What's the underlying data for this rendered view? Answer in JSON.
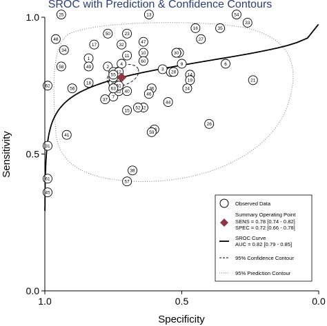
{
  "chart_data": {
    "type": "scatter",
    "title": "SROC with Prediction & Confidence Contours",
    "xlabel": "Specificity",
    "ylabel": "Sensitivity",
    "x_reversed": true,
    "xlim": [
      1.0,
      0.0
    ],
    "ylim": [
      0.0,
      1.0
    ],
    "xticks": [
      "1.0",
      "0.5",
      "0.0"
    ],
    "yticks": [
      "0.0",
      "0.5",
      "1.0"
    ],
    "grid": false,
    "legend_position": "bottom-right",
    "studies": [
      {
        "id": "1",
        "spec": 0.84,
        "sens": 0.85
      },
      {
        "id": "2",
        "spec": 0.77,
        "sens": 0.82
      },
      {
        "id": "3",
        "spec": 0.57,
        "sens": 0.81
      },
      {
        "id": "4",
        "spec": 0.72,
        "sens": 0.83
      },
      {
        "id": "5",
        "spec": 0.75,
        "sens": 0.8
      },
      {
        "id": "6",
        "spec": 0.34,
        "sens": 0.83
      },
      {
        "id": "7",
        "spec": 0.75,
        "sens": 0.71
      },
      {
        "id": "8",
        "spec": 0.54,
        "sens": 0.8
      },
      {
        "id": "9",
        "spec": 0.5,
        "sens": 0.83
      },
      {
        "id": "10",
        "spec": 0.64,
        "sens": 0.87
      },
      {
        "id": "11",
        "spec": 0.7,
        "sens": 0.86
      },
      {
        "id": "12",
        "spec": 0.73,
        "sens": 0.8
      },
      {
        "id": "13",
        "spec": 0.62,
        "sens": 1.01
      },
      {
        "id": "14",
        "spec": 0.47,
        "sens": 0.79
      },
      {
        "id": "15",
        "spec": 0.7,
        "sens": 0.66
      },
      {
        "id": "16",
        "spec": 0.45,
        "sens": 0.96
      },
      {
        "id": "17",
        "spec": 0.82,
        "sens": 0.9
      },
      {
        "id": "18",
        "spec": 0.84,
        "sens": 0.76
      },
      {
        "id": "19",
        "spec": 0.47,
        "sens": 0.77
      },
      {
        "id": "20",
        "spec": 0.51,
        "sens": 0.87
      },
      {
        "id": "21",
        "spec": 0.24,
        "sens": 0.77
      },
      {
        "id": "22",
        "spec": 0.73,
        "sens": 0.73
      },
      {
        "id": "23",
        "spec": 0.7,
        "sens": 0.94
      },
      {
        "id": "24",
        "spec": 0.48,
        "sens": 0.74
      },
      {
        "id": "25",
        "spec": 0.94,
        "sens": 1.01
      },
      {
        "id": "26",
        "spec": 0.4,
        "sens": 0.61
      },
      {
        "id": "27",
        "spec": 0.43,
        "sens": 0.92
      },
      {
        "id": "28",
        "spec": 0.53,
        "sens": 0.8
      },
      {
        "id": "29",
        "spec": 0.52,
        "sens": 0.87
      },
      {
        "id": "30",
        "spec": 0.52,
        "sens": 0.87
      },
      {
        "id": "31",
        "spec": 0.99,
        "sens": 0.53
      },
      {
        "id": "32",
        "spec": 0.72,
        "sens": 0.9
      },
      {
        "id": "33",
        "spec": 0.26,
        "sens": 0.98
      },
      {
        "id": "34",
        "spec": 0.93,
        "sens": 0.88
      },
      {
        "id": "35",
        "spec": 0.36,
        "sens": 0.96
      },
      {
        "id": "36",
        "spec": 0.61,
        "sens": 0.74
      },
      {
        "id": "37",
        "spec": 0.78,
        "sens": 0.7
      },
      {
        "id": "38",
        "spec": 0.68,
        "sens": 0.44
      },
      {
        "id": "39",
        "spec": 0.75,
        "sens": 0.76
      },
      {
        "id": "40",
        "spec": 0.7,
        "sens": 0.73
      },
      {
        "id": "41",
        "spec": 0.92,
        "sens": 0.57
      },
      {
        "id": "42",
        "spec": 0.64,
        "sens": 0.67
      },
      {
        "id": "43",
        "spec": 0.6,
        "sens": 0.59
      },
      {
        "id": "44",
        "spec": 0.55,
        "sens": 0.69
      },
      {
        "id": "45",
        "spec": 0.99,
        "sens": 0.36
      },
      {
        "id": "46",
        "spec": 0.62,
        "sens": 0.72
      },
      {
        "id": "47",
        "spec": 0.64,
        "sens": 0.91
      },
      {
        "id": "48",
        "spec": 0.96,
        "sens": 0.92
      },
      {
        "id": "49",
        "spec": 0.84,
        "sens": 0.82
      },
      {
        "id": "50",
        "spec": 0.77,
        "sens": 0.94
      },
      {
        "id": "51",
        "spec": 0.73,
        "sens": 0.75
      },
      {
        "id": "52",
        "spec": 0.66,
        "sens": 0.67
      },
      {
        "id": "53",
        "spec": 0.75,
        "sens": 0.78
      },
      {
        "id": "54",
        "spec": 0.3,
        "sens": 1.01
      },
      {
        "id": "55",
        "spec": 0.75,
        "sens": 0.79
      },
      {
        "id": "56",
        "spec": 0.9,
        "sens": 0.74
      },
      {
        "id": "57",
        "spec": 0.7,
        "sens": 0.4
      },
      {
        "id": "58",
        "spec": 0.94,
        "sens": 0.82
      },
      {
        "id": "59",
        "spec": 0.61,
        "sens": 0.58
      },
      {
        "id": "60",
        "spec": 0.64,
        "sens": 0.84
      },
      {
        "id": "61",
        "spec": 0.99,
        "sens": 0.41
      },
      {
        "id": "62",
        "spec": 0.99,
        "sens": 0.75
      },
      {
        "id": "63",
        "spec": 0.75,
        "sens": 0.74
      }
    ],
    "summary_point": {
      "spec": 0.72,
      "sens": 0.78
    },
    "sroc_auc": 0.82,
    "legend": {
      "observed": "Observed Data",
      "summary_title": "Summary Operating Point",
      "summary_sens": "SENS = 0.78 [0.74 - 0.82]",
      "summary_spec": "SPEC = 0.72 [0.66 - 0.78]",
      "curve_title": "SROC Curve",
      "curve_auc": "AUC = 0.82 [0.79 - 0.85]",
      "confidence": "95% Confidence Contour",
      "prediction": "95% Prediction Contour"
    },
    "colors": {
      "title": "#2b3d73",
      "summary_marker": "#8b3a45",
      "ink": "#000000",
      "prediction_contour": "#777777"
    }
  }
}
